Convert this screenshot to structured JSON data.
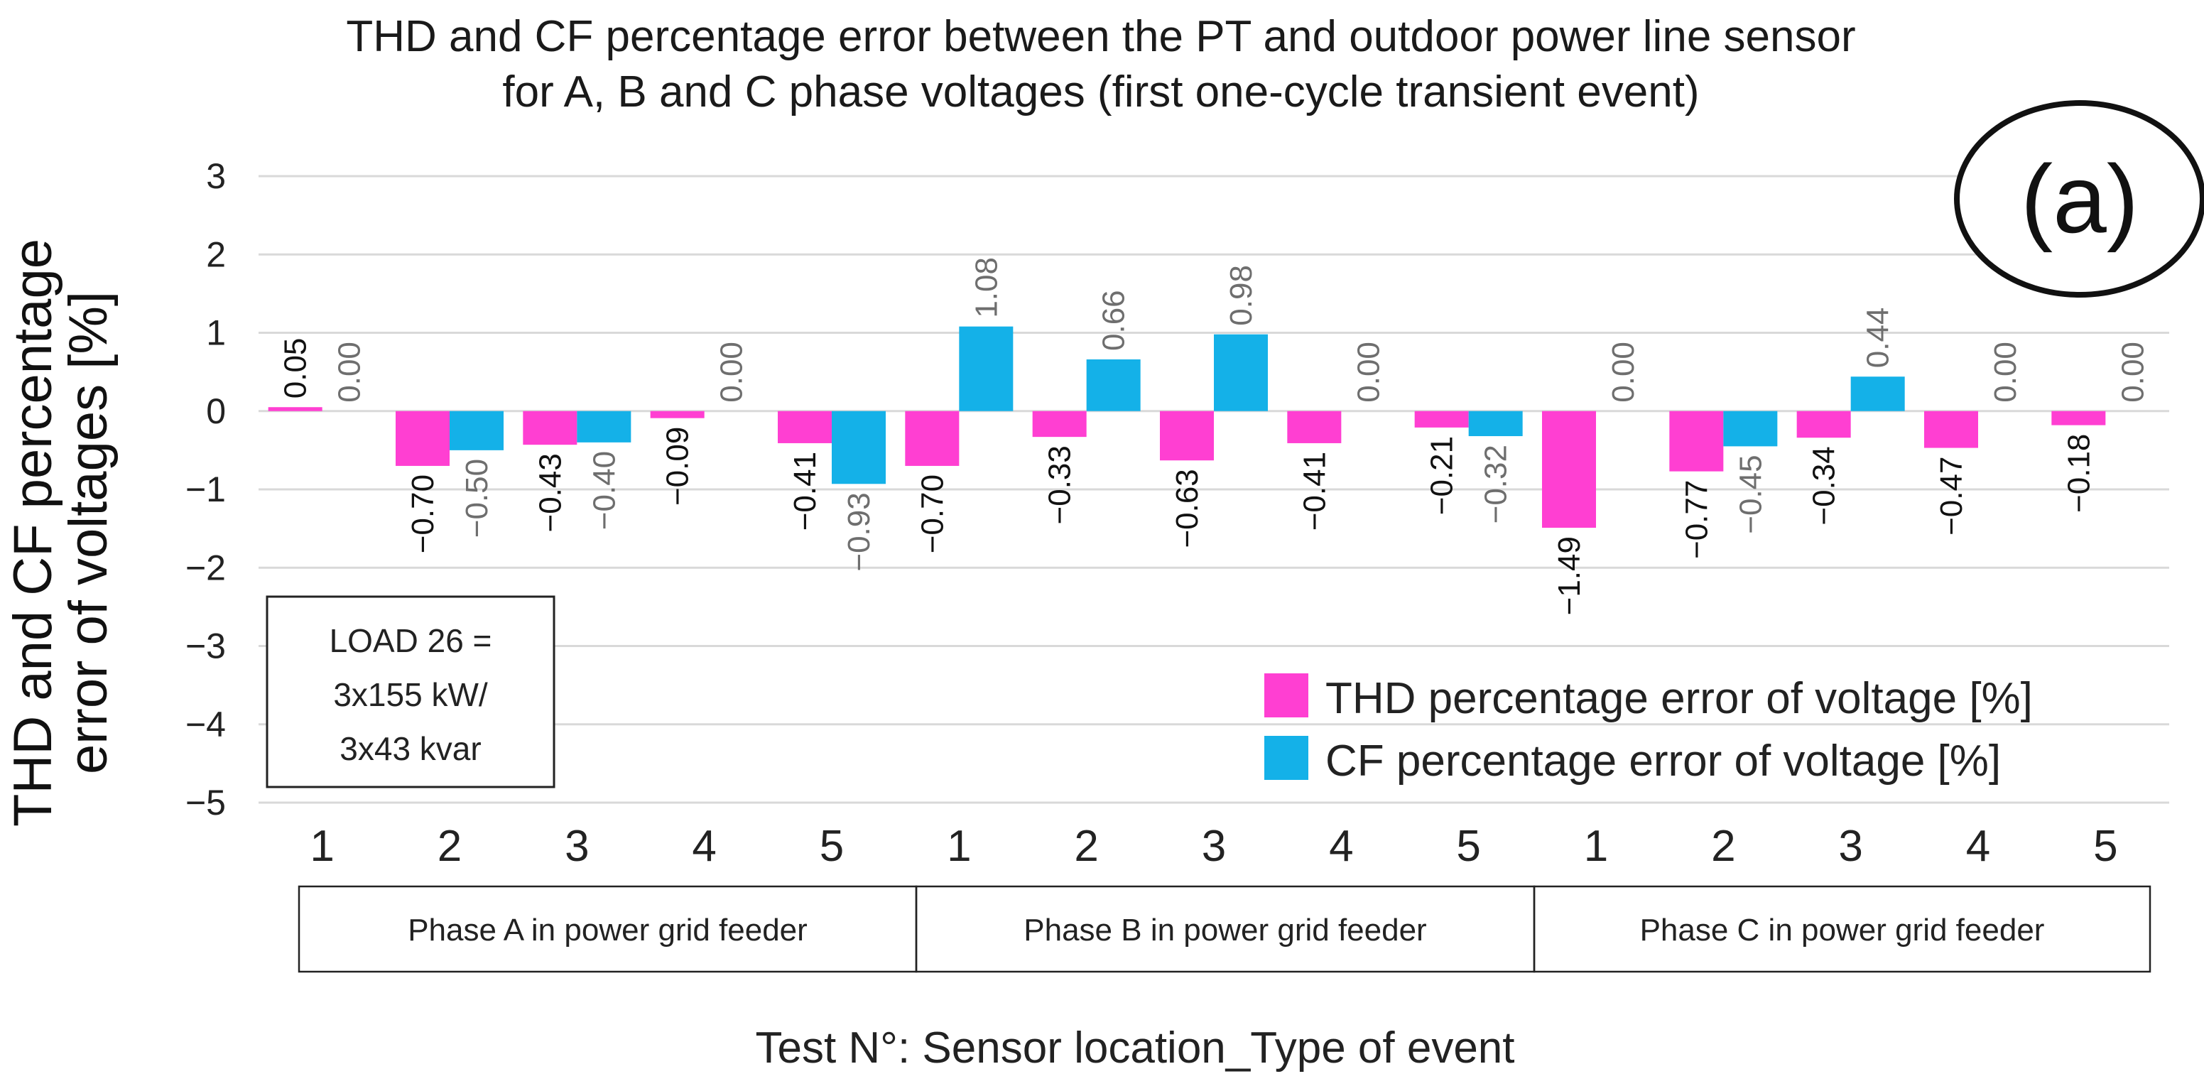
{
  "chart_data": {
    "type": "bar",
    "title_lines": [
      "THD and CF percentage error between the PT and outdoor power line sensor",
      "for A, B and C phase voltages (first one-cycle transient event)"
    ],
    "ylabel_lines": [
      "THD and CF percentage",
      "error of voltages [%]"
    ],
    "xlabel": "Test N°: Sensor location_Type of event",
    "ylim": [
      -5,
      3
    ],
    "yticks": [
      "−5",
      "−4",
      "−3",
      "−2",
      "−1",
      "0",
      "1",
      "2",
      "3"
    ],
    "grid": true,
    "categories": [
      "1",
      "2",
      "3",
      "4",
      "5",
      "1",
      "2",
      "3",
      "4",
      "5",
      "1",
      "2",
      "3",
      "4",
      "5"
    ],
    "groups": [
      "Phase A in power grid feeder",
      "Phase B in power grid feeder",
      "Phase C in power grid feeder"
    ],
    "series": [
      {
        "name": "THD percentage error of voltage [%]",
        "color": "#ff3fd2",
        "values": [
          0.05,
          -0.7,
          -0.43,
          -0.09,
          -0.41,
          -0.7,
          -0.33,
          -0.63,
          -0.41,
          -0.21,
          -1.49,
          -0.77,
          -0.34,
          -0.47,
          -0.18
        ],
        "labels": [
          "0.05",
          "−0.70",
          "−0.43",
          "−0.09",
          "−0.41",
          "−0.70",
          "−0.33",
          "−0.63",
          "−0.41",
          "−0.21",
          "−1.49",
          "−0.77",
          "−0.34",
          "−0.47",
          "−0.18"
        ]
      },
      {
        "name": "CF percentage error of voltage [%]",
        "color": "#14b1e8",
        "values": [
          0.0,
          -0.5,
          -0.4,
          0.0,
          -0.93,
          1.08,
          0.66,
          0.98,
          0.0,
          -0.32,
          0.0,
          -0.45,
          0.44,
          0.0,
          0.0
        ],
        "labels": [
          "0.00",
          "−0.50",
          "−0.40",
          "0.00",
          "−0.93",
          "1.08",
          "0.66",
          "0.98",
          "0.00",
          "−0.32",
          "0.00",
          "−0.45",
          "0.44",
          "0.00",
          "0.00"
        ]
      }
    ],
    "legend_position": "bottom-right",
    "annotations": {
      "badge": "(a)",
      "load_box_lines": [
        "LOAD 26 =",
        "3x155 kW/",
        "3x43 kvar"
      ]
    }
  }
}
